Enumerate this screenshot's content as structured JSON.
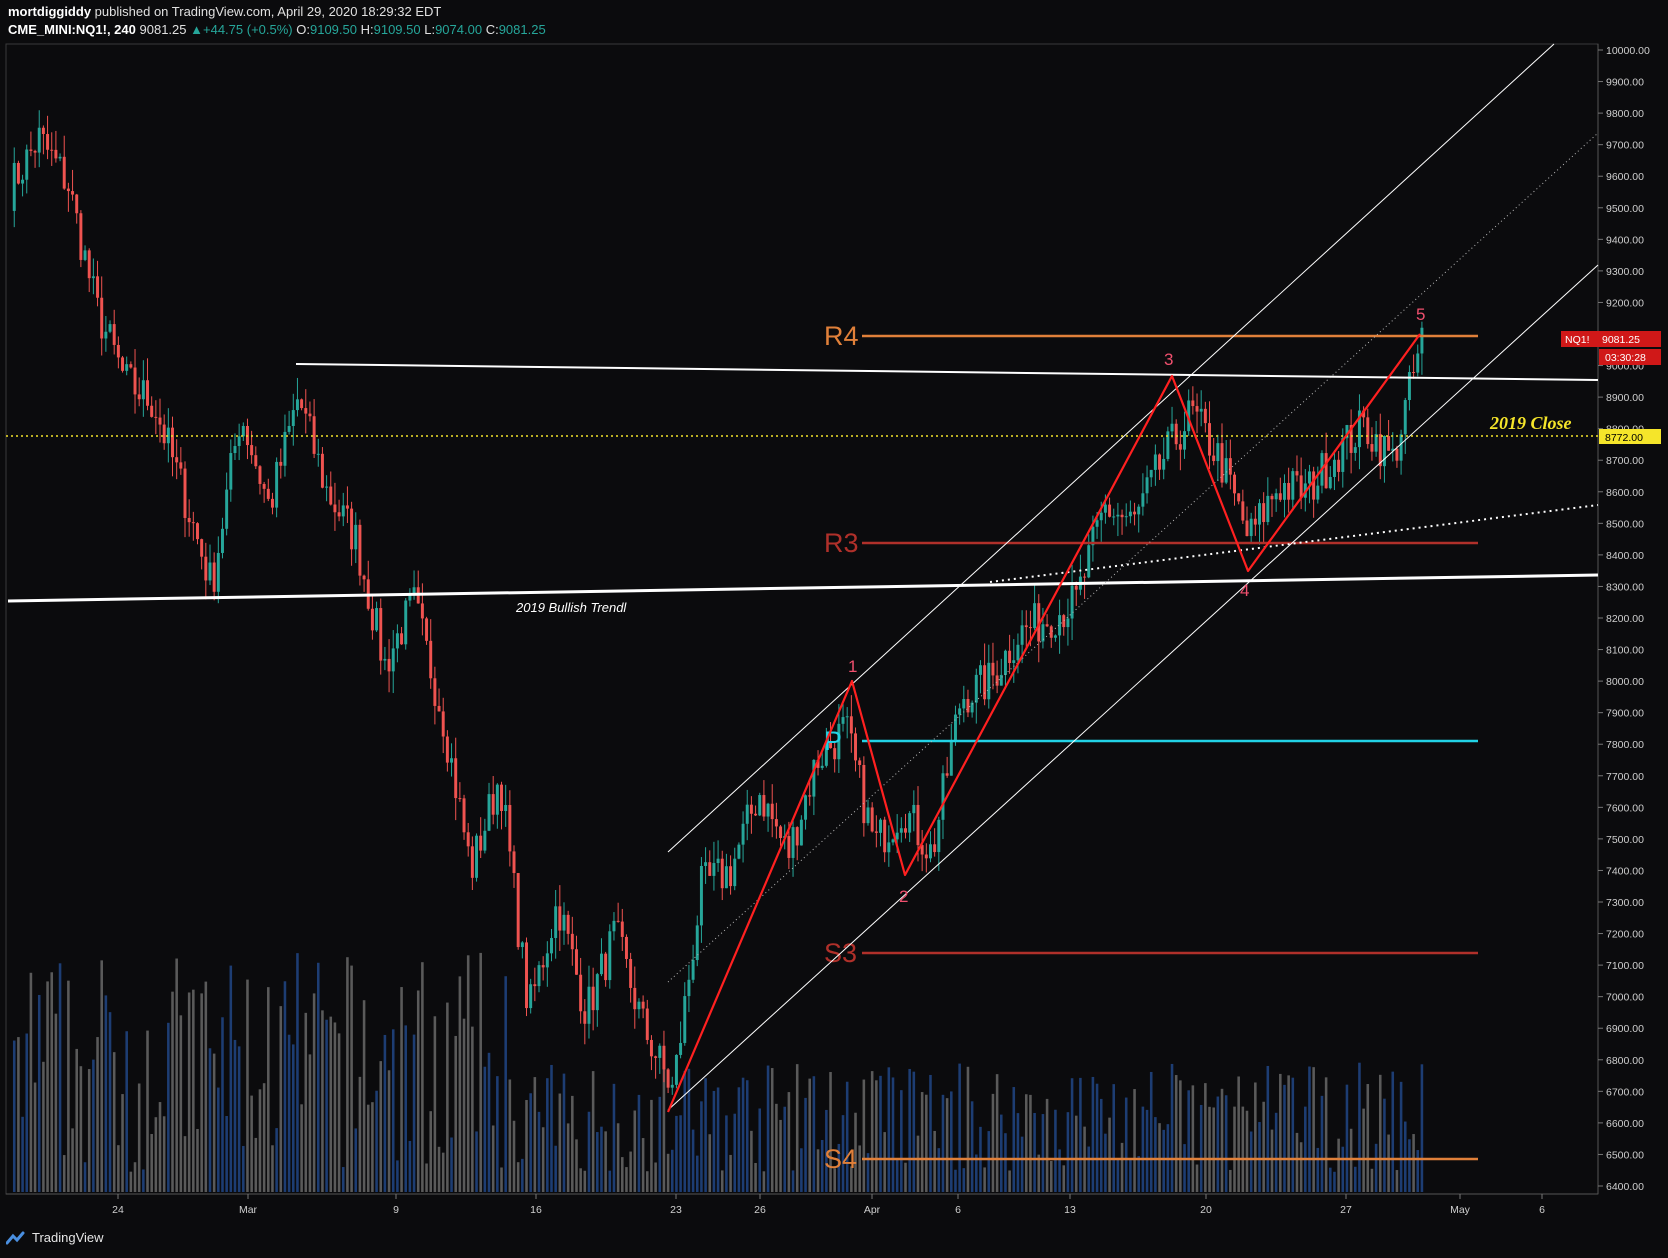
{
  "header": {
    "author": "mortdiggiddy",
    "published_text": "published on TradingView.com, April 29, 2020 18:29:32 EDT",
    "symbol": "CME_MINI:NQ1!, 240",
    "last": "9081.25",
    "change": "+44.75 (+0.5%)",
    "o_label": "O:",
    "o_value": "9109.50",
    "h_label": "H:",
    "h_value": "9109.50",
    "l_label": "L:",
    "l_value": "9074.00",
    "c_label": "C:",
    "c_value": "9081.25"
  },
  "footer": {
    "brand": "TradingView"
  },
  "colors": {
    "background": "#0b0b0d",
    "up": "#26a69a",
    "down": "#ef5350",
    "r4": "#e0803a",
    "r3": "#b0302a",
    "s3": "#b0302a",
    "s4": "#e0803a",
    "pivot": "#22d3e6",
    "close_2019": "#f5e52a",
    "wave": "#ff2020",
    "price_tag": "#d01818"
  },
  "chart_data": {
    "type": "candlestick",
    "symbol": "CME_MINI:NQ1!",
    "interval": "240",
    "ylim": [
      6400,
      10000
    ],
    "y_ticks": [
      "10000.00",
      "9900.00",
      "9800.00",
      "9700.00",
      "9600.00",
      "9500.00",
      "9400.00",
      "9300.00",
      "9200.00",
      "9100.00",
      "9000.00",
      "8900.00",
      "8800.00",
      "8700.00",
      "8600.00",
      "8500.00",
      "8400.00",
      "8300.00",
      "8200.00",
      "8100.00",
      "8000.00",
      "7900.00",
      "7800.00",
      "7700.00",
      "7600.00",
      "7500.00",
      "7400.00",
      "7300.00",
      "7200.00",
      "7100.00",
      "7000.00",
      "6900.00",
      "6800.00",
      "6700.00",
      "6600.00",
      "6500.00",
      "6400.00"
    ],
    "x_ticks": [
      "24",
      "Mar",
      "9",
      "16",
      "23",
      "26",
      "Apr",
      "6",
      "13",
      "20",
      "27",
      "May",
      "6"
    ],
    "levels": [
      {
        "label": "R4",
        "value": 9100
      },
      {
        "label": "R3",
        "value": 8440
      },
      {
        "label": "P",
        "value": 7805
      },
      {
        "label": "S3",
        "value": 7135
      },
      {
        "label": "S4",
        "value": 6480
      }
    ],
    "close_2019": {
      "label": "2019 Close",
      "value": 8772,
      "tag": "8772.00"
    },
    "trendline_label": "2019 Bullish Trendl",
    "last_price": {
      "symbol": "NQ1!",
      "value": "9081.25",
      "countdown": "03:30:28"
    },
    "wave_labels": [
      "1",
      "2",
      "3",
      "4",
      "5"
    ],
    "wave_points": [
      {
        "date": "2020-03-23",
        "price": 6630
      },
      {
        "date": "2020-03-31",
        "price": 7990
      },
      {
        "date": "2020-04-03",
        "price": 7380
      },
      {
        "date": "2020-04-17",
        "price": 8960
      },
      {
        "date": "2020-04-22",
        "price": 8350
      },
      {
        "date": "2020-04-29",
        "price": 9100
      }
    ],
    "candles_approx": [
      [
        "2020-02-19",
        9560
      ],
      [
        "2020-02-20",
        9720
      ],
      [
        "2020-02-21",
        9580
      ],
      [
        "2020-02-24",
        9180
      ],
      [
        "2020-02-25",
        8950
      ],
      [
        "2020-02-26",
        8880
      ],
      [
        "2020-02-27",
        8600
      ],
      [
        "2020-02-28",
        8300
      ],
      [
        "2020-03-02",
        8850
      ],
      [
        "2020-03-03",
        8550
      ],
      [
        "2020-03-04",
        8900
      ],
      [
        "2020-03-05",
        8600
      ],
      [
        "2020-03-06",
        8450
      ],
      [
        "2020-03-09",
        8050
      ],
      [
        "2020-03-10",
        8250
      ],
      [
        "2020-03-11",
        7900
      ],
      [
        "2020-03-12",
        7400
      ],
      [
        "2020-03-13",
        7700
      ],
      [
        "2020-03-16",
        6950
      ],
      [
        "2020-03-17",
        7300
      ],
      [
        "2020-03-18",
        6950
      ],
      [
        "2020-03-19",
        7200
      ],
      [
        "2020-03-20",
        6900
      ],
      [
        "2020-03-23",
        6700
      ],
      [
        "2020-03-24",
        7350
      ],
      [
        "2020-03-25",
        7400
      ],
      [
        "2020-03-26",
        7650
      ],
      [
        "2020-03-27",
        7450
      ],
      [
        "2020-03-30",
        7750
      ],
      [
        "2020-03-31",
        7850
      ],
      [
        "2020-04-01",
        7480
      ],
      [
        "2020-04-02",
        7600
      ],
      [
        "2020-04-03",
        7450
      ],
      [
        "2020-04-06",
        7950
      ],
      [
        "2020-04-07",
        8000
      ],
      [
        "2020-04-08",
        8150
      ],
      [
        "2020-04-09",
        8200
      ],
      [
        "2020-04-13",
        8250
      ],
      [
        "2020-04-14",
        8550
      ],
      [
        "2020-04-15",
        8500
      ],
      [
        "2020-04-16",
        8700
      ],
      [
        "2020-04-17",
        8850
      ],
      [
        "2020-04-20",
        8700
      ],
      [
        "2020-04-21",
        8450
      ],
      [
        "2020-04-22",
        8620
      ],
      [
        "2020-04-23",
        8600
      ],
      [
        "2020-04-24",
        8720
      ],
      [
        "2020-04-27",
        8810
      ],
      [
        "2020-04-28",
        8700
      ],
      [
        "2020-04-29",
        9081
      ]
    ]
  }
}
